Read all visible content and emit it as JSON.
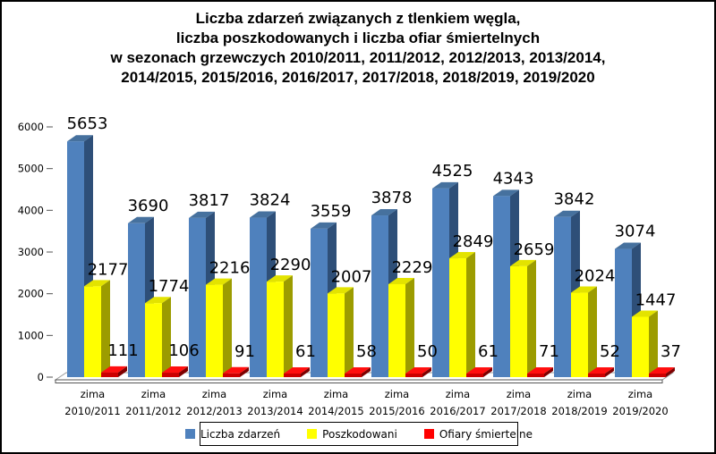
{
  "chart_data": {
    "type": "bar",
    "title": "Liczba zdarzeń związanych z tlenkiem węgla, liczba poszkodowanych i liczba ofiar śmiertelnych w sezonach grzewczych 2010/2011, 2011/2012, 2012/2013, 2013/2014, 2014/2015, 2015/2016, 2016/2017, 2017/2018, 2018/2019, 2019/2020",
    "title_lines": [
      "Liczba zdarzeń związanych z tlenkiem węgla,",
      "liczba poszkodowanych i liczba ofiar śmiertelnych",
      "w sezonach grzewczych 2010/2011, 2011/2012, 2012/2013, 2013/2014,",
      "2014/2015, 2015/2016, 2016/2017, 2017/2018, 2018/2019, 2019/2020"
    ],
    "categories": [
      {
        "line1": "zima",
        "line2": "2010/2011"
      },
      {
        "line1": "zima",
        "line2": "2011/2012"
      },
      {
        "line1": "zima",
        "line2": "2012/2013"
      },
      {
        "line1": "zima",
        "line2": "2013/2014"
      },
      {
        "line1": "zima",
        "line2": "2014/2015"
      },
      {
        "line1": "zima",
        "line2": "2015/2016"
      },
      {
        "line1": "zima",
        "line2": "2016/2017"
      },
      {
        "line1": "zima",
        "line2": "2017/2018"
      },
      {
        "line1": "zima",
        "line2": "2018/2019"
      },
      {
        "line1": "zima",
        "line2": "2019/2020"
      }
    ],
    "series": [
      {
        "name": "Liczba zdarzeń",
        "color": "#4F81BD",
        "color_front": "#4F81BD",
        "color_top": "#46719E",
        "color_side": "#2E4F78",
        "values": [
          5653,
          3690,
          3817,
          3824,
          3559,
          3878,
          4525,
          4343,
          3842,
          3074
        ]
      },
      {
        "name": "Poszkodowani",
        "color": "#FFFF00",
        "color_front": "#FFFF00",
        "color_top": "#E3E300",
        "color_side": "#9C9C00",
        "values": [
          2177,
          1774,
          2216,
          2290,
          2007,
          2229,
          2849,
          2659,
          2024,
          1447
        ]
      },
      {
        "name": "Ofiary śmiertelne",
        "color": "#FF0000",
        "color_front": "#CC0000",
        "color_top": "#FF0F0F",
        "color_side": "#7E0000",
        "values": [
          111,
          106,
          91,
          61,
          58,
          50,
          61,
          71,
          52,
          37
        ]
      }
    ],
    "y_ticks": [
      0,
      1000,
      2000,
      3000,
      4000,
      5000,
      6000
    ],
    "ylim": [
      0,
      6000
    ],
    "xlabel": "",
    "ylabel": "",
    "grid": false,
    "legend_position": "bottom",
    "style": "3d-clustered-bar"
  }
}
